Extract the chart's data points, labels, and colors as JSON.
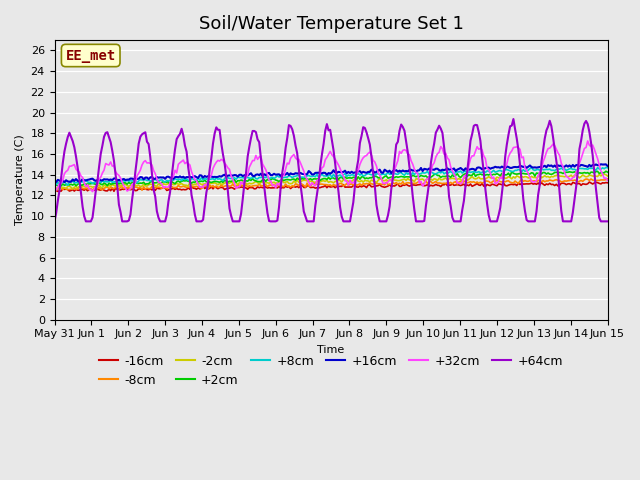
{
  "title": "Soil/Water Temperature Set 1",
  "xlabel": "Time",
  "ylabel": "Temperature (C)",
  "ylim": [
    0,
    27
  ],
  "yticks": [
    0,
    2,
    4,
    6,
    8,
    10,
    12,
    14,
    16,
    18,
    20,
    22,
    24,
    26
  ],
  "background_color": "#e8e8e8",
  "series": {
    "-16cm": {
      "color": "#cc0000",
      "linewidth": 1.2
    },
    "-8cm": {
      "color": "#ff8800",
      "linewidth": 1.2
    },
    "-2cm": {
      "color": "#cccc00",
      "linewidth": 1.2
    },
    "+2cm": {
      "color": "#00cc00",
      "linewidth": 1.2
    },
    "+8cm": {
      "color": "#00cccc",
      "linewidth": 1.2
    },
    "+16cm": {
      "color": "#0000cc",
      "linewidth": 1.5
    },
    "+32cm": {
      "color": "#ff44ff",
      "linewidth": 1.2
    },
    "+64cm": {
      "color": "#9900cc",
      "linewidth": 1.5
    }
  },
  "annotation_text": "EE_met",
  "annotation_color": "#880000",
  "annotation_bg": "#ffffcc",
  "n_points": 336,
  "days": 15,
  "x_tick_positions": [
    0,
    1,
    2,
    3,
    4,
    5,
    6,
    7,
    8,
    9,
    10,
    11,
    12,
    13,
    14,
    15
  ],
  "x_tick_labels": [
    "May 31",
    "Jun 1",
    "Jun 2",
    "Jun 3",
    "Jun 4",
    "Jun 5",
    "Jun 6",
    "Jun 7",
    "Jun 8",
    "Jun 9",
    "Jun 10",
    "Jun 11",
    "Jun 12",
    "Jun 13",
    "Jun 14",
    "Jun 15"
  ],
  "title_fontsize": 13,
  "axis_fontsize": 8,
  "legend_fontsize": 9
}
